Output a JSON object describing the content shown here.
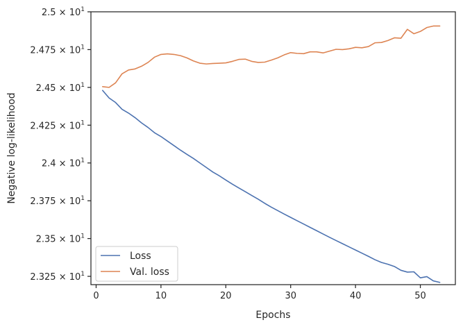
{
  "chart_data": {
    "type": "line",
    "title": "",
    "xlabel": "Epochs",
    "ylabel": "Negative log-likelihood",
    "xlim": [
      -0.8,
      55.4
    ],
    "ylim": [
      23.195,
      25.0
    ],
    "x_ticks": [
      0,
      10,
      20,
      30,
      40,
      50
    ],
    "y_ticks": [
      {
        "value": 23.25,
        "mantissa": "2.325"
      },
      {
        "value": 23.5,
        "mantissa": "2.35"
      },
      {
        "value": 23.75,
        "mantissa": "2.375"
      },
      {
        "value": 24.0,
        "mantissa": "2.4"
      },
      {
        "value": 24.25,
        "mantissa": "2.425"
      },
      {
        "value": 24.5,
        "mantissa": "2.45"
      },
      {
        "value": 24.75,
        "mantissa": "2.475"
      },
      {
        "value": 25.0,
        "mantissa": "2.5"
      }
    ],
    "y_tick_base": "10",
    "y_tick_exp": "1",
    "grid": false,
    "legend": "lower-left",
    "series": [
      {
        "name": "Loss",
        "color": "#4c72b0",
        "x": [
          1,
          2,
          3,
          4,
          5,
          6,
          7,
          8,
          9,
          10,
          11,
          12,
          13,
          14,
          15,
          16,
          17,
          18,
          19,
          20,
          21,
          22,
          23,
          24,
          25,
          26,
          27,
          28,
          29,
          30,
          31,
          32,
          33,
          34,
          35,
          36,
          37,
          38,
          39,
          40,
          41,
          42,
          43,
          44,
          45,
          46,
          47,
          48,
          49,
          50,
          51,
          52,
          53
        ],
        "values": [
          24.48,
          24.43,
          24.4,
          24.355,
          24.33,
          24.3,
          24.265,
          24.235,
          24.2,
          24.175,
          24.145,
          24.115,
          24.085,
          24.057,
          24.03,
          24.0,
          23.97,
          23.94,
          23.915,
          23.887,
          23.86,
          23.835,
          23.81,
          23.785,
          23.76,
          23.733,
          23.708,
          23.685,
          23.662,
          23.64,
          23.618,
          23.596,
          23.574,
          23.552,
          23.53,
          23.508,
          23.487,
          23.466,
          23.445,
          23.424,
          23.403,
          23.382,
          23.36,
          23.342,
          23.33,
          23.315,
          23.29,
          23.278,
          23.28,
          23.24,
          23.248,
          23.22,
          23.21
        ]
      },
      {
        "name": "Val. loss",
        "color": "#dd8452",
        "x": [
          1,
          2,
          3,
          4,
          5,
          6,
          7,
          8,
          9,
          10,
          11,
          12,
          13,
          14,
          15,
          16,
          17,
          18,
          19,
          20,
          21,
          22,
          23,
          24,
          25,
          26,
          27,
          28,
          29,
          30,
          31,
          32,
          33,
          34,
          35,
          36,
          37,
          38,
          39,
          40,
          41,
          42,
          43,
          44,
          45,
          46,
          47,
          48,
          49,
          50,
          51,
          52,
          53
        ],
        "values": [
          24.505,
          24.5,
          24.53,
          24.59,
          24.615,
          24.622,
          24.64,
          24.665,
          24.7,
          24.718,
          24.722,
          24.718,
          24.71,
          24.695,
          24.675,
          24.66,
          24.655,
          24.658,
          24.66,
          24.662,
          24.672,
          24.685,
          24.687,
          24.672,
          24.665,
          24.667,
          24.68,
          24.695,
          24.715,
          24.73,
          24.725,
          24.723,
          24.735,
          24.735,
          24.728,
          24.74,
          24.752,
          24.75,
          24.755,
          24.765,
          24.762,
          24.77,
          24.795,
          24.797,
          24.81,
          24.828,
          24.825,
          24.884,
          24.855,
          24.87,
          24.896,
          24.906,
          24.906
        ]
      }
    ]
  }
}
